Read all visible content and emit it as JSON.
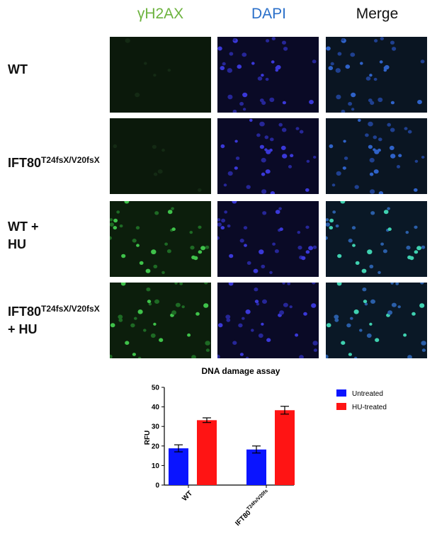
{
  "columns": [
    {
      "label": "γH2AX",
      "color": "#6db33f"
    },
    {
      "label": "DAPI",
      "color": "#2a6fc9"
    },
    {
      "label": "Merge",
      "color": "#111111"
    }
  ],
  "rows": [
    {
      "label_main": "WT",
      "label_sup": "",
      "label_suffix": ""
    },
    {
      "label_main": "IFT80",
      "label_sup": "T24fsX/V20fsX",
      "label_suffix": ""
    },
    {
      "label_main": "WT +",
      "label_sup": "",
      "label_suffix": "HU"
    },
    {
      "label_main": "IFT80",
      "label_sup": "T24fsX/V20fsX",
      "label_suffix": "+ HU"
    }
  ],
  "chart_data": {
    "type": "bar",
    "title": "DNA damage assay",
    "ylabel": "RFU",
    "xlabel": "",
    "ylim": [
      0,
      50
    ],
    "yticks": [
      0,
      10,
      20,
      30,
      40,
      50
    ],
    "categories": [
      {
        "main": "WT",
        "sup": ""
      },
      {
        "main": "IFT80",
        "sup": "T24fs/V20fs"
      }
    ],
    "series": [
      {
        "name": "Untreated",
        "color": "#0a14ff",
        "values": [
          18.8,
          18.2
        ],
        "errors": [
          1.8,
          1.8
        ]
      },
      {
        "name": "HU-treated",
        "color": "#ff1414",
        "values": [
          33.2,
          38.3
        ],
        "errors": [
          1.2,
          2.0
        ]
      }
    ],
    "legend_position": "top-right",
    "grid": false
  }
}
